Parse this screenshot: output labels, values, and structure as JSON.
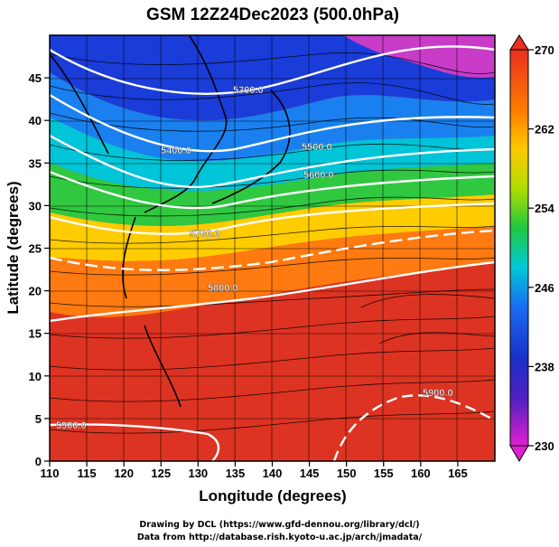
{
  "title": "GSM 12Z24Dec2023 (500.0hPa)",
  "x_axis": {
    "label": "Longitude (degrees)",
    "range": [
      110,
      170
    ],
    "ticks": [
      "110",
      "115",
      "120",
      "125",
      "130",
      "135",
      "140",
      "145",
      "150",
      "155",
      "160",
      "165"
    ]
  },
  "y_axis": {
    "label": "Latitude  (degrees)",
    "range": [
      0,
      50
    ],
    "ticks": [
      "0",
      "5",
      "10",
      "15",
      "20",
      "25",
      "30",
      "35",
      "40",
      "45"
    ]
  },
  "colorbar": {
    "range": [
      230,
      270
    ],
    "ticks": [
      "230",
      "238",
      "246",
      "254",
      "262",
      "270"
    ]
  },
  "contour_labels": [
    {
      "text": "5300.0"
    },
    {
      "text": "5400.0"
    },
    {
      "text": "5500.0"
    },
    {
      "text": "5600.0"
    },
    {
      "text": "5700.0"
    },
    {
      "text": "5800.0"
    },
    {
      "text": "5900.0"
    },
    {
      "text": "5900.0"
    }
  ],
  "footer": {
    "line1": "Drawing by DCL (https://www.gfd-dennou.org/library/dcl/)",
    "line2": "Data from http://database.rish.kyoto-u.ac.jp/arch/jmadata/"
  }
}
